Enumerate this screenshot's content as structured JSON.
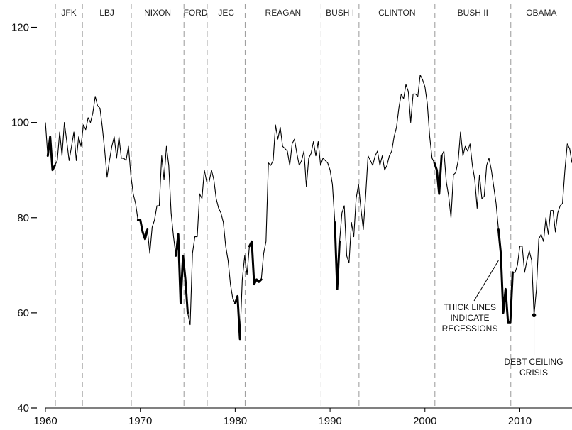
{
  "chart_data": {
    "type": "line",
    "title": "",
    "xlabel": "",
    "ylabel": "",
    "xlim": [
      1960,
      2015.5
    ],
    "ylim": [
      40,
      125
    ],
    "x_ticks": [
      1960,
      1970,
      1980,
      1990,
      2000,
      2010
    ],
    "x_tick_labels": [
      "1960",
      "1970",
      "1980",
      "1990",
      "2000",
      "2010"
    ],
    "y_ticks": [
      40,
      60,
      80,
      100,
      120
    ],
    "y_tick_labels": [
      "40",
      "60",
      "80",
      "100",
      "120"
    ],
    "grid": false,
    "presidents": [
      {
        "label": "JFK",
        "start": 1961.05
      },
      {
        "label": "LBJ",
        "start": 1963.9
      },
      {
        "label": "NIXON",
        "start": 1969.05
      },
      {
        "label": "FORD",
        "start": 1974.6
      },
      {
        "label": "JEC",
        "start": 1977.05
      },
      {
        "label": "REAGAN",
        "start": 1981.05
      },
      {
        "label": "BUSH I",
        "start": 1989.05
      },
      {
        "label": "CLINTON",
        "start": 1993.05
      },
      {
        "label": "BUSH II",
        "start": 2001.05
      },
      {
        "label": "OBAMA",
        "start": 2009.05
      }
    ],
    "series": [
      {
        "values": [
          [
            1960.0,
            100
          ],
          [
            1960.25,
            93
          ],
          [
            1960.5,
            97
          ],
          [
            1960.75,
            90
          ],
          [
            1961.0,
            91
          ],
          [
            1961.25,
            92
          ],
          [
            1961.5,
            98
          ],
          [
            1961.75,
            93
          ],
          [
            1962.0,
            100
          ],
          [
            1962.25,
            96
          ],
          [
            1962.5,
            92
          ],
          [
            1962.75,
            95
          ],
          [
            1963.0,
            98
          ],
          [
            1963.25,
            92
          ],
          [
            1963.5,
            97
          ],
          [
            1963.75,
            95
          ],
          [
            1964.0,
            99.5
          ],
          [
            1964.25,
            98.5
          ],
          [
            1964.5,
            101
          ],
          [
            1964.75,
            100
          ],
          [
            1965.0,
            102
          ],
          [
            1965.25,
            105.5
          ],
          [
            1965.5,
            103.5
          ],
          [
            1965.75,
            103
          ],
          [
            1966.0,
            99
          ],
          [
            1966.25,
            94
          ],
          [
            1966.5,
            88.5
          ],
          [
            1966.75,
            92
          ],
          [
            1967.0,
            95
          ],
          [
            1967.25,
            97
          ],
          [
            1967.5,
            92.5
          ],
          [
            1967.75,
            97
          ],
          [
            1968.0,
            92.5
          ],
          [
            1968.25,
            92.5
          ],
          [
            1968.5,
            92
          ],
          [
            1968.75,
            95
          ],
          [
            1969.0,
            89
          ],
          [
            1969.25,
            85
          ],
          [
            1969.5,
            83
          ],
          [
            1969.75,
            79.5
          ],
          [
            1970.0,
            79.5
          ],
          [
            1970.25,
            77
          ],
          [
            1970.5,
            75.5
          ],
          [
            1970.75,
            77.5
          ],
          [
            1971.0,
            72.5
          ],
          [
            1971.25,
            78
          ],
          [
            1971.5,
            79.5
          ],
          [
            1971.75,
            82.5
          ],
          [
            1972.0,
            82.5
          ],
          [
            1972.25,
            93
          ],
          [
            1972.5,
            88
          ],
          [
            1972.75,
            95
          ],
          [
            1973.0,
            91
          ],
          [
            1973.25,
            81
          ],
          [
            1973.5,
            76
          ],
          [
            1973.75,
            72
          ],
          [
            1974.0,
            76.5
          ],
          [
            1974.25,
            62
          ],
          [
            1974.5,
            72
          ],
          [
            1974.75,
            67
          ],
          [
            1975.0,
            60
          ],
          [
            1975.25,
            57.5
          ],
          [
            1975.5,
            72.5
          ],
          [
            1975.75,
            76
          ],
          [
            1976.0,
            76
          ],
          [
            1976.25,
            85
          ],
          [
            1976.5,
            84
          ],
          [
            1976.75,
            90
          ],
          [
            1977.0,
            87.5
          ],
          [
            1977.25,
            87.5
          ],
          [
            1977.5,
            90
          ],
          [
            1977.75,
            88
          ],
          [
            1978.0,
            84
          ],
          [
            1978.25,
            82
          ],
          [
            1978.5,
            81
          ],
          [
            1978.75,
            79
          ],
          [
            1979.0,
            74
          ],
          [
            1979.25,
            71
          ],
          [
            1979.5,
            66
          ],
          [
            1979.75,
            63
          ],
          [
            1980.0,
            62
          ],
          [
            1980.25,
            63.5
          ],
          [
            1980.5,
            54.5
          ],
          [
            1980.75,
            67
          ],
          [
            1981.0,
            72
          ],
          [
            1981.25,
            68
          ],
          [
            1981.5,
            74
          ],
          [
            1981.75,
            75
          ],
          [
            1982.0,
            66
          ],
          [
            1982.25,
            67
          ],
          [
            1982.5,
            66.5
          ],
          [
            1982.75,
            67
          ],
          [
            1983.0,
            72.5
          ],
          [
            1983.25,
            75
          ],
          [
            1983.5,
            91.5
          ],
          [
            1983.75,
            91
          ],
          [
            1984.0,
            92
          ],
          [
            1984.25,
            99.5
          ],
          [
            1984.5,
            96.5
          ],
          [
            1984.75,
            99
          ],
          [
            1985.0,
            95
          ],
          [
            1985.25,
            94.5
          ],
          [
            1985.5,
            94
          ],
          [
            1985.75,
            91
          ],
          [
            1986.0,
            95.5
          ],
          [
            1986.25,
            96.5
          ],
          [
            1986.5,
            93.5
          ],
          [
            1986.75,
            91
          ],
          [
            1987.0,
            92
          ],
          [
            1987.25,
            94
          ],
          [
            1987.5,
            86.5
          ],
          [
            1987.75,
            92.5
          ],
          [
            1988.0,
            93.5
          ],
          [
            1988.25,
            96
          ],
          [
            1988.5,
            93
          ],
          [
            1988.75,
            96
          ],
          [
            1989.0,
            91
          ],
          [
            1989.25,
            92.5
          ],
          [
            1989.5,
            92
          ],
          [
            1989.75,
            91.5
          ],
          [
            1990.0,
            90
          ],
          [
            1990.25,
            87
          ],
          [
            1990.5,
            79
          ],
          [
            1990.75,
            65
          ],
          [
            1991.0,
            75
          ],
          [
            1991.25,
            81
          ],
          [
            1991.5,
            82.5
          ],
          [
            1991.75,
            72
          ],
          [
            1992.0,
            70.5
          ],
          [
            1992.25,
            79
          ],
          [
            1992.5,
            76
          ],
          [
            1992.75,
            84
          ],
          [
            1993.0,
            87
          ],
          [
            1993.25,
            82
          ],
          [
            1993.5,
            77.5
          ],
          [
            1993.75,
            84.5
          ],
          [
            1994.0,
            93
          ],
          [
            1994.25,
            92
          ],
          [
            1994.5,
            91
          ],
          [
            1994.75,
            93
          ],
          [
            1995.0,
            94
          ],
          [
            1995.25,
            91
          ],
          [
            1995.5,
            93
          ],
          [
            1995.75,
            90
          ],
          [
            1996.0,
            91
          ],
          [
            1996.25,
            93
          ],
          [
            1996.5,
            94
          ],
          [
            1996.75,
            97
          ],
          [
            1997.0,
            99
          ],
          [
            1997.25,
            103
          ],
          [
            1997.5,
            106
          ],
          [
            1997.75,
            105
          ],
          [
            1998.0,
            108
          ],
          [
            1998.25,
            106.5
          ],
          [
            1998.5,
            100
          ],
          [
            1998.75,
            106
          ],
          [
            1999.0,
            106
          ],
          [
            1999.25,
            105.5
          ],
          [
            1999.5,
            110
          ],
          [
            1999.75,
            109
          ],
          [
            2000.0,
            107.5
          ],
          [
            2000.25,
            104
          ],
          [
            2000.5,
            97
          ],
          [
            2000.75,
            92.5
          ],
          [
            2001.0,
            91.5
          ],
          [
            2001.25,
            90
          ],
          [
            2001.5,
            85
          ],
          [
            2001.75,
            93
          ],
          [
            2002.0,
            94
          ],
          [
            2002.25,
            87.5
          ],
          [
            2002.5,
            84.5
          ],
          [
            2002.75,
            80
          ],
          [
            2003.0,
            89
          ],
          [
            2003.25,
            89.5
          ],
          [
            2003.5,
            92
          ],
          [
            2003.75,
            98
          ],
          [
            2004.0,
            93
          ],
          [
            2004.25,
            95
          ],
          [
            2004.5,
            94
          ],
          [
            2004.75,
            95.5
          ],
          [
            2005.0,
            91
          ],
          [
            2005.25,
            88
          ],
          [
            2005.5,
            82
          ],
          [
            2005.75,
            89
          ],
          [
            2006.0,
            84
          ],
          [
            2006.25,
            84.5
          ],
          [
            2006.5,
            91
          ],
          [
            2006.75,
            92.5
          ],
          [
            2007.0,
            90
          ],
          [
            2007.25,
            86.5
          ],
          [
            2007.5,
            83
          ],
          [
            2007.75,
            77.5
          ],
          [
            2008.0,
            72.5
          ],
          [
            2008.25,
            60
          ],
          [
            2008.5,
            65
          ],
          [
            2008.75,
            58
          ],
          [
            2009.0,
            58
          ],
          [
            2009.25,
            68.5
          ],
          [
            2009.5,
            68.5
          ],
          [
            2009.75,
            70
          ],
          [
            2010.0,
            74
          ],
          [
            2010.25,
            74
          ],
          [
            2010.5,
            68.5
          ],
          [
            2010.75,
            71
          ],
          [
            2011.0,
            73
          ],
          [
            2011.25,
            71
          ],
          [
            2011.5,
            59.5
          ],
          [
            2011.75,
            65
          ],
          [
            2012.0,
            75.5
          ],
          [
            2012.25,
            76.5
          ],
          [
            2012.5,
            75
          ],
          [
            2012.75,
            80
          ],
          [
            2013.0,
            76.5
          ],
          [
            2013.25,
            81.5
          ],
          [
            2013.5,
            81.5
          ],
          [
            2013.75,
            77
          ],
          [
            2014.0,
            81
          ],
          [
            2014.25,
            82.5
          ],
          [
            2014.5,
            83
          ],
          [
            2014.75,
            90
          ],
          [
            2015.0,
            95.5
          ],
          [
            2015.25,
            94.5
          ],
          [
            2015.5,
            91.5
          ]
        ]
      }
    ],
    "recessions": [
      [
        1960.25,
        1961.0
      ],
      [
        1969.75,
        1970.75
      ],
      [
        1973.75,
        1975.0
      ],
      [
        1980.0,
        1980.5
      ],
      [
        1981.5,
        1982.75
      ],
      [
        1990.5,
        1991.0
      ],
      [
        2001.0,
        2001.75
      ],
      [
        2007.75,
        2009.25
      ]
    ],
    "annotations": {
      "recession_note": [
        "THICK LINES",
        "INDICATE",
        "RECESSIONS"
      ],
      "debt_note": [
        "DEBT CEILING",
        "CRISIS"
      ],
      "debt_point": [
        2011.5,
        59.5
      ]
    }
  }
}
